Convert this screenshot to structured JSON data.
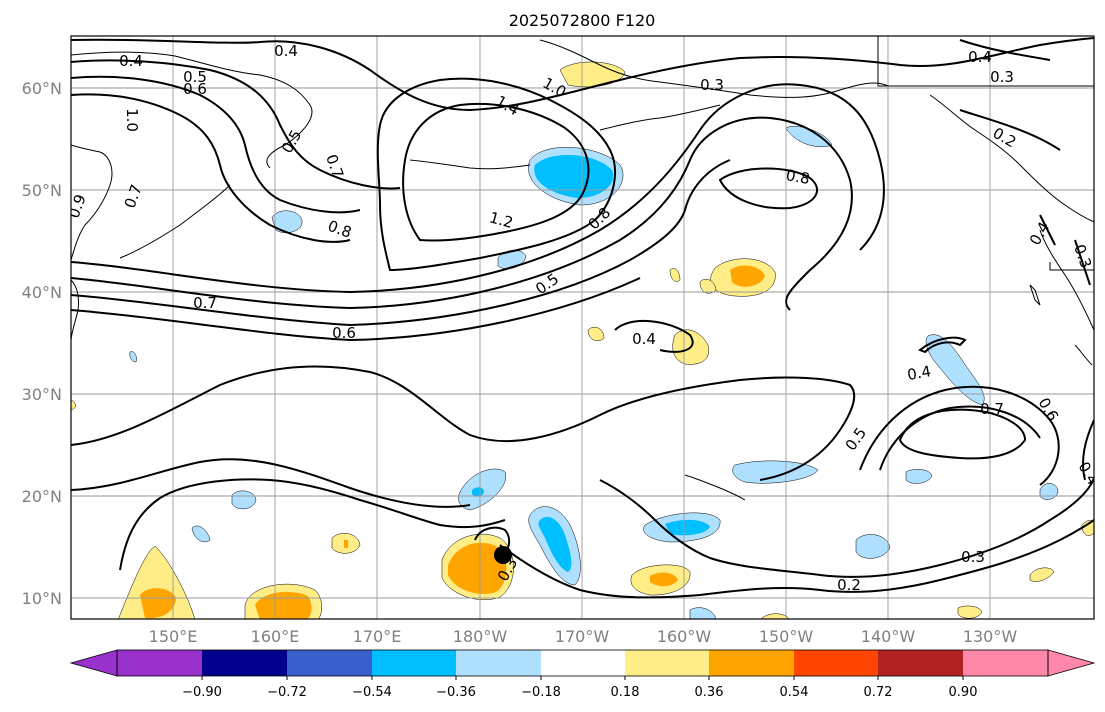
{
  "title": "2025072800 F120",
  "lat_labels": [
    "60°N",
    "50°N",
    "40°N",
    "30°N",
    "20°N",
    "10°N"
  ],
  "lon_labels": [
    "150°E",
    "160°E",
    "170°E",
    "180°W",
    "170°W",
    "160°W",
    "150°W",
    "140°W",
    "130°W"
  ],
  "contour_labels": [
    "0.4",
    "0.5",
    "0.6",
    "1.0",
    "0.4",
    "1.0",
    "1.4",
    "0.3",
    "0.4",
    "0.3",
    "0.5",
    "0.7",
    "0.8",
    "0.7",
    "0.9",
    "1.2",
    "0.8",
    "0.8",
    "0.7",
    "0.5",
    "0.6",
    "0.4",
    "0.4",
    "0.7",
    "0.6",
    "0.5",
    "0.3",
    "0.2",
    "0.3",
    "0.4",
    "0.2",
    "0.3",
    "0.4"
  ],
  "colorbar": {
    "ticks": [
      "−0.90",
      "−0.72",
      "−0.54",
      "−0.36",
      "−0.18",
      "0.18",
      "0.36",
      "0.54",
      "0.72",
      "0.90"
    ],
    "colors": [
      "#9932cc",
      "#00008b",
      "#3a5fcd",
      "#00bfff",
      "#b0e0ff",
      "#ffffff",
      "#ffee88",
      "#ffa500",
      "#ff4500",
      "#b22222",
      "#ff88aa",
      "#ff88aa"
    ]
  },
  "colors": {
    "light_blue": "#b0e0ff",
    "blue": "#00bfff",
    "yellow": "#ffee88",
    "orange": "#ffa500"
  }
}
